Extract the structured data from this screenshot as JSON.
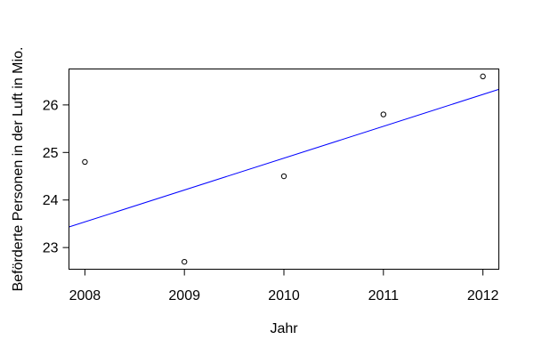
{
  "figure": {
    "background": "#ffffff",
    "axis_color": "#000000",
    "text_color": "#000000"
  },
  "chart_data": {
    "type": "scatter",
    "title": "",
    "xlabel": "Jahr",
    "ylabel": "Beförderte Personen in der Luft in Mio.",
    "x": [
      2008,
      2009,
      2010,
      2011,
      2012
    ],
    "y": [
      24.8,
      22.7,
      24.5,
      25.8,
      26.6
    ],
    "xticks": [
      2008,
      2009,
      2010,
      2011,
      2012
    ],
    "yticks": [
      23,
      24,
      25,
      26
    ],
    "xlim": [
      2007.84,
      2012.16
    ],
    "ylim": [
      22.544,
      26.756
    ],
    "grid": false,
    "legend": null,
    "marker": {
      "style": "open-circle",
      "color": "#000000"
    },
    "trend_line": {
      "type": "linear-regression",
      "slope": 0.67,
      "intercept": -1321.82,
      "color": "#0000ff"
    }
  }
}
